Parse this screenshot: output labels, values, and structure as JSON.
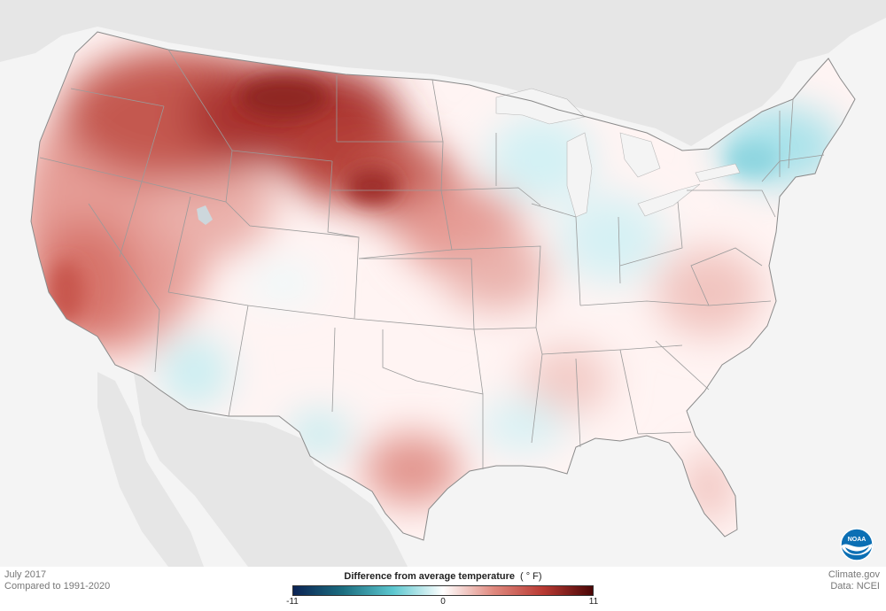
{
  "map": {
    "region": "Contiguous United States",
    "variable": "Difference from average temperature",
    "unit": "°F"
  },
  "meta": {
    "period": "July 2017",
    "baseline": "Compared to 1991-2020"
  },
  "credits": {
    "site": "Climate.gov",
    "data_source": "Data: NCEI"
  },
  "legend": {
    "title": "Difference from average temperature",
    "unit": "( ° F)",
    "min_label": "-11",
    "mid_label": "0",
    "max_label": "11",
    "min_value": -11,
    "max_value": 11,
    "colors": [
      "#0b2354",
      "#1c6e80",
      "#5cc7cf",
      "#ffffff",
      "#e08a80",
      "#b93a33",
      "#4a0606"
    ]
  },
  "logo": {
    "icon": "noaa-logo-icon",
    "text": "NOAA"
  },
  "colors": {
    "background": "#f4f4f4",
    "land_outside": "#e6e6e6",
    "water": "#f4f4f4",
    "state_borders": "#9a9a9a",
    "strong_warm": "#a8322d",
    "moderate_warm": "#dc8a84",
    "near_average": "#fff5f4",
    "cool": "#bdeaef"
  }
}
